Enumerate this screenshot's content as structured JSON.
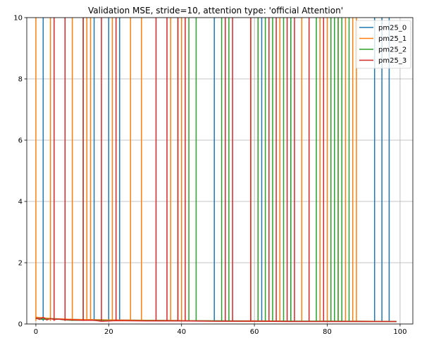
{
  "chart_data": {
    "type": "line",
    "title": "Validation MSE, stride=10, attention type: 'official Attention'",
    "xlabel": "",
    "ylabel": "",
    "xlim": [
      -2.5,
      103.5
    ],
    "ylim": [
      0,
      10
    ],
    "xticks": [
      0,
      20,
      40,
      60,
      80,
      100
    ],
    "yticks": [
      0,
      2,
      4,
      6,
      8,
      10
    ],
    "grid": true,
    "legend_position": "upper right",
    "series": [
      {
        "name": "pm25_0",
        "color": "#1f77b4",
        "baseline": [
          [
            0,
            0.2
          ],
          [
            2,
            0.18
          ],
          [
            4,
            0.17
          ],
          [
            6,
            0.16
          ],
          [
            10,
            0.15
          ],
          [
            15,
            0.14
          ],
          [
            20,
            0.13
          ],
          [
            30,
            0.12
          ],
          [
            40,
            0.11
          ],
          [
            50,
            0.1
          ],
          [
            60,
            0.1
          ],
          [
            70,
            0.09
          ],
          [
            80,
            0.09
          ],
          [
            90,
            0.09
          ],
          [
            99,
            0.08
          ]
        ],
        "spike_x": [
          2,
          16,
          20,
          23,
          49,
          62,
          70,
          93,
          95,
          97
        ]
      },
      {
        "name": "pm25_1",
        "color": "#ff7f0e",
        "baseline": [
          [
            0,
            0.22
          ],
          [
            2,
            0.2
          ],
          [
            4,
            0.18
          ],
          [
            6,
            0.17
          ],
          [
            10,
            0.15
          ],
          [
            15,
            0.14
          ],
          [
            20,
            0.13
          ],
          [
            30,
            0.12
          ],
          [
            40,
            0.11
          ],
          [
            50,
            0.1
          ],
          [
            60,
            0.1
          ],
          [
            70,
            0.09
          ],
          [
            80,
            0.09
          ],
          [
            90,
            0.09
          ],
          [
            99,
            0.08
          ]
        ],
        "spike_x": [
          0,
          4,
          10,
          14,
          15,
          21,
          26,
          29,
          37,
          40,
          59,
          61,
          67,
          73,
          78,
          80,
          81,
          83,
          85,
          87,
          88
        ]
      },
      {
        "name": "pm25_2",
        "color": "#2ca02c",
        "baseline": [
          [
            0,
            0.18
          ],
          [
            2,
            0.15
          ],
          [
            4,
            0.17
          ],
          [
            6,
            0.16
          ],
          [
            8,
            0.13
          ],
          [
            10,
            0.12
          ],
          [
            15,
            0.12
          ],
          [
            20,
            0.11
          ],
          [
            30,
            0.11
          ],
          [
            40,
            0.1
          ],
          [
            50,
            0.1
          ],
          [
            60,
            0.09
          ],
          [
            70,
            0.09
          ],
          [
            80,
            0.09
          ],
          [
            90,
            0.08
          ],
          [
            99,
            0.08
          ]
        ],
        "spike_x": [
          13,
          39,
          42,
          44,
          51,
          53,
          61,
          63,
          65,
          68,
          70,
          77,
          81,
          82,
          83,
          84,
          86
        ]
      },
      {
        "name": "pm25_3",
        "color": "#d62728",
        "baseline": [
          [
            0,
            0.2
          ],
          [
            1,
            0.15
          ],
          [
            2,
            0.22
          ],
          [
            3,
            0.13
          ],
          [
            4,
            0.18
          ],
          [
            5,
            0.14
          ],
          [
            6,
            0.16
          ],
          [
            8,
            0.14
          ],
          [
            10,
            0.13
          ],
          [
            13,
            0.12
          ],
          [
            16,
            0.12
          ],
          [
            18,
            0.09
          ],
          [
            22,
            0.11
          ],
          [
            30,
            0.1
          ],
          [
            40,
            0.1
          ],
          [
            50,
            0.09
          ],
          [
            60,
            0.09
          ],
          [
            70,
            0.08
          ],
          [
            80,
            0.08
          ],
          [
            90,
            0.08
          ],
          [
            99,
            0.08
          ]
        ],
        "spike_x": [
          5,
          8,
          13,
          18,
          22,
          33,
          36,
          39,
          41,
          52,
          54,
          59,
          64,
          66,
          69,
          71,
          75,
          79
        ]
      }
    ]
  }
}
